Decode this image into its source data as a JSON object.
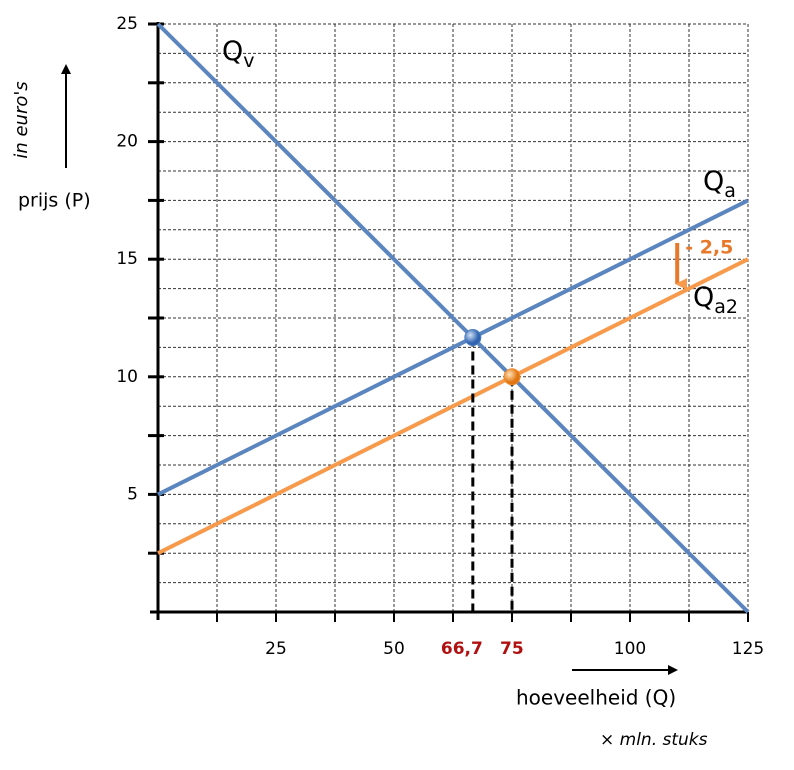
{
  "chart_data": {
    "type": "line",
    "y_label": "prijs (P)",
    "y_unit": "in euro's",
    "x_label": "hoeveelheid (Q)",
    "x_unit": "× mln. stuks",
    "xlim": [
      0,
      125
    ],
    "ylim": [
      0,
      25
    ],
    "xticks": [
      25,
      50,
      100,
      125
    ],
    "yticks": [
      5,
      10,
      15,
      20,
      25
    ],
    "xgrid": [
      12.5,
      25,
      37.5,
      50,
      62.5,
      75,
      87.5,
      100,
      112.5,
      125
    ],
    "ygrid": [
      1.25,
      2.5,
      3.75,
      5,
      6.25,
      7.5,
      8.75,
      10,
      11.25,
      12.5,
      13.75,
      15,
      16.25,
      17.5,
      18.75,
      20,
      21.25,
      22.5,
      23.75,
      25
    ],
    "grid": true,
    "series": [
      {
        "name": "Q",
        "subscript": "v",
        "color": "#5b85bf",
        "x": [
          0,
          125
        ],
        "values": [
          25,
          0
        ]
      },
      {
        "name": "Q",
        "subscript": "a",
        "color": "#5b85bf",
        "x": [
          0,
          125
        ],
        "values": [
          5,
          17.5
        ]
      },
      {
        "name": "Q",
        "subscript": "a2",
        "color": "#f79a4b",
        "x": [
          0,
          125
        ],
        "values": [
          2.5,
          15
        ]
      }
    ],
    "points": [
      {
        "x": 66.7,
        "y": 11.67,
        "x_label": "66,7",
        "color": "#4a7cc0"
      },
      {
        "x": 75,
        "y": 10,
        "x_label": "75",
        "color": "#f08a2a"
      }
    ],
    "shift": {
      "text": "- 2,5",
      "value": -2.5,
      "x": 110,
      "color": "#e8782a"
    }
  }
}
